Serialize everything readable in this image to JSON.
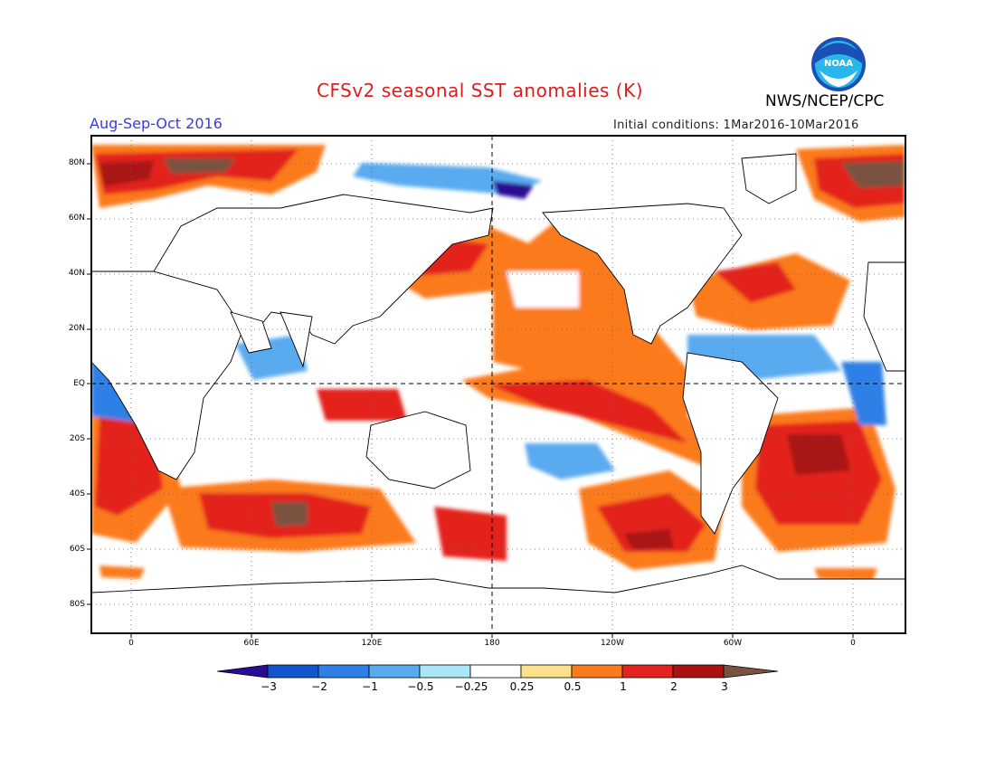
{
  "header": {
    "title": "CFSv2 seasonal SST anomalies (K)",
    "agency": "NWS/NCEP/CPC",
    "logo_text": "NOAA",
    "season": "Aug-Sep-Oct 2016",
    "initial_conditions": "Initial conditions: 1Mar2016-10Mar2016"
  },
  "map": {
    "lat_labels": [
      "80N",
      "60N",
      "40N",
      "20N",
      "EQ",
      "20S",
      "40S",
      "60S",
      "80S"
    ],
    "lon_labels": [
      "0",
      "60E",
      "120E",
      "180",
      "120W",
      "60W",
      "0"
    ],
    "frame_color": "#000000"
  },
  "colorbar": {
    "labels": [
      "-3",
      "-2",
      "-1",
      "-0.5",
      "-0.25",
      "0.25",
      "0.5",
      "1",
      "2",
      "3"
    ],
    "colors": [
      "#2a0b93",
      "#1256cf",
      "#2d80e6",
      "#5aaaf0",
      "#a9e6f7",
      "#ffffff",
      "#fde08c",
      "#fb7a1c",
      "#e3231f",
      "#a81212",
      "#7a5240"
    ]
  },
  "palette": {
    "deep_red": "#a81212",
    "red": "#e3231f",
    "orange": "#fb7a1c",
    "yellow": "#fde08c",
    "light_blue": "#a9e6f7",
    "blue": "#5aaaf0",
    "mid_blue": "#2d80e6",
    "dark_blue": "#1256cf",
    "navy": "#2a0b93",
    "brown": "#7a5240"
  }
}
